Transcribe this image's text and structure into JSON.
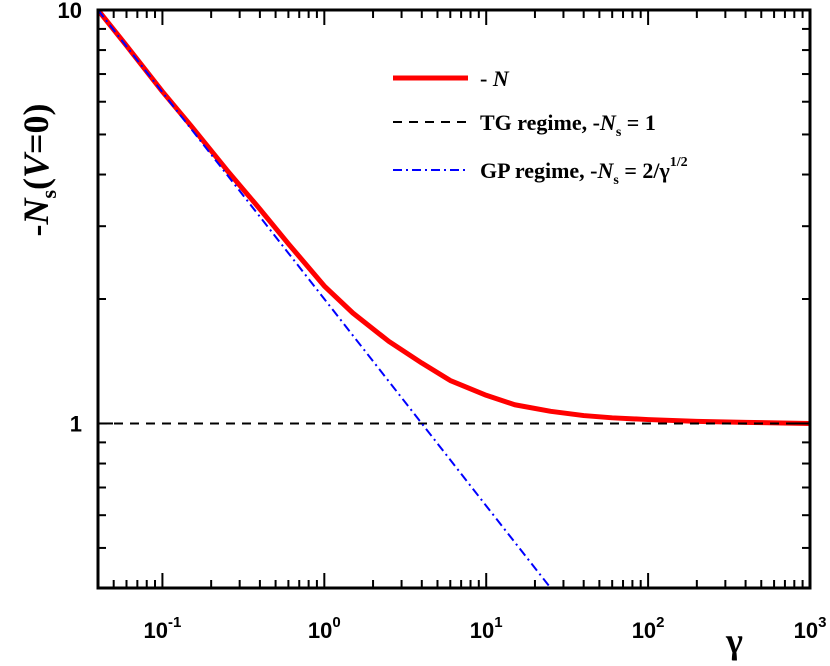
{
  "chart_data": {
    "type": "line",
    "title": "",
    "xlabel": "γ",
    "ylabel": {
      "prefix": "-",
      "var": "N",
      "sub": "s",
      "arg_open": "(",
      "arg_var": "V",
      "arg_rest": "=0)"
    },
    "xscale": "log",
    "yscale": "log",
    "xlim": [
      0.04,
      1000
    ],
    "ylim": [
      0.4,
      10
    ],
    "x_ticks": [
      {
        "value": 0.1,
        "base": "10",
        "exp": "-1"
      },
      {
        "value": 1,
        "base": "10",
        "exp": "0"
      },
      {
        "value": 10,
        "base": "10",
        "exp": "1"
      },
      {
        "value": 100,
        "base": "10",
        "exp": "2"
      },
      {
        "value": 1000,
        "base": "10",
        "exp": "3"
      }
    ],
    "y_ticks": [
      {
        "value": 1,
        "label": "1"
      },
      {
        "value": 10,
        "label": "10"
      }
    ],
    "grid": false,
    "legend_position": "top-right",
    "series": [
      {
        "id": "N",
        "style": "solid",
        "color": "#ff0000",
        "legend": {
          "prefix": "- ",
          "var": "N",
          "sub": "",
          "rest": "",
          "sup": ""
        },
        "x": [
          0.04,
          0.06,
          0.1,
          0.15,
          0.25,
          0.4,
          0.6,
          1,
          1.5,
          2.5,
          4,
          6,
          10,
          15,
          25,
          40,
          60,
          100,
          200,
          400,
          1000
        ],
        "y": [
          10.0,
          8.2,
          6.35,
          5.25,
          4.1,
          3.3,
          2.72,
          2.15,
          1.85,
          1.58,
          1.4,
          1.27,
          1.17,
          1.11,
          1.07,
          1.045,
          1.032,
          1.022,
          1.012,
          1.006,
          1.0
        ]
      },
      {
        "id": "TG",
        "style": "dashed",
        "color": "#000000",
        "legend": {
          "prefix": "TG regime, -",
          "var": "N",
          "sub": "s",
          "rest": " = 1",
          "sup": ""
        },
        "x": [
          0.04,
          1000
        ],
        "y": [
          1,
          1
        ]
      },
      {
        "id": "GP",
        "style": "dashdot",
        "color": "#0000ff",
        "legend": {
          "prefix": "GP regime, -",
          "var": "N",
          "sub": "s",
          "rest": " = 2/γ",
          "sup": "1/2"
        },
        "x": [
          0.04,
          1,
          4,
          10,
          25
        ],
        "y": [
          10.0,
          2.0,
          1.0,
          0.632,
          0.4
        ]
      }
    ]
  }
}
